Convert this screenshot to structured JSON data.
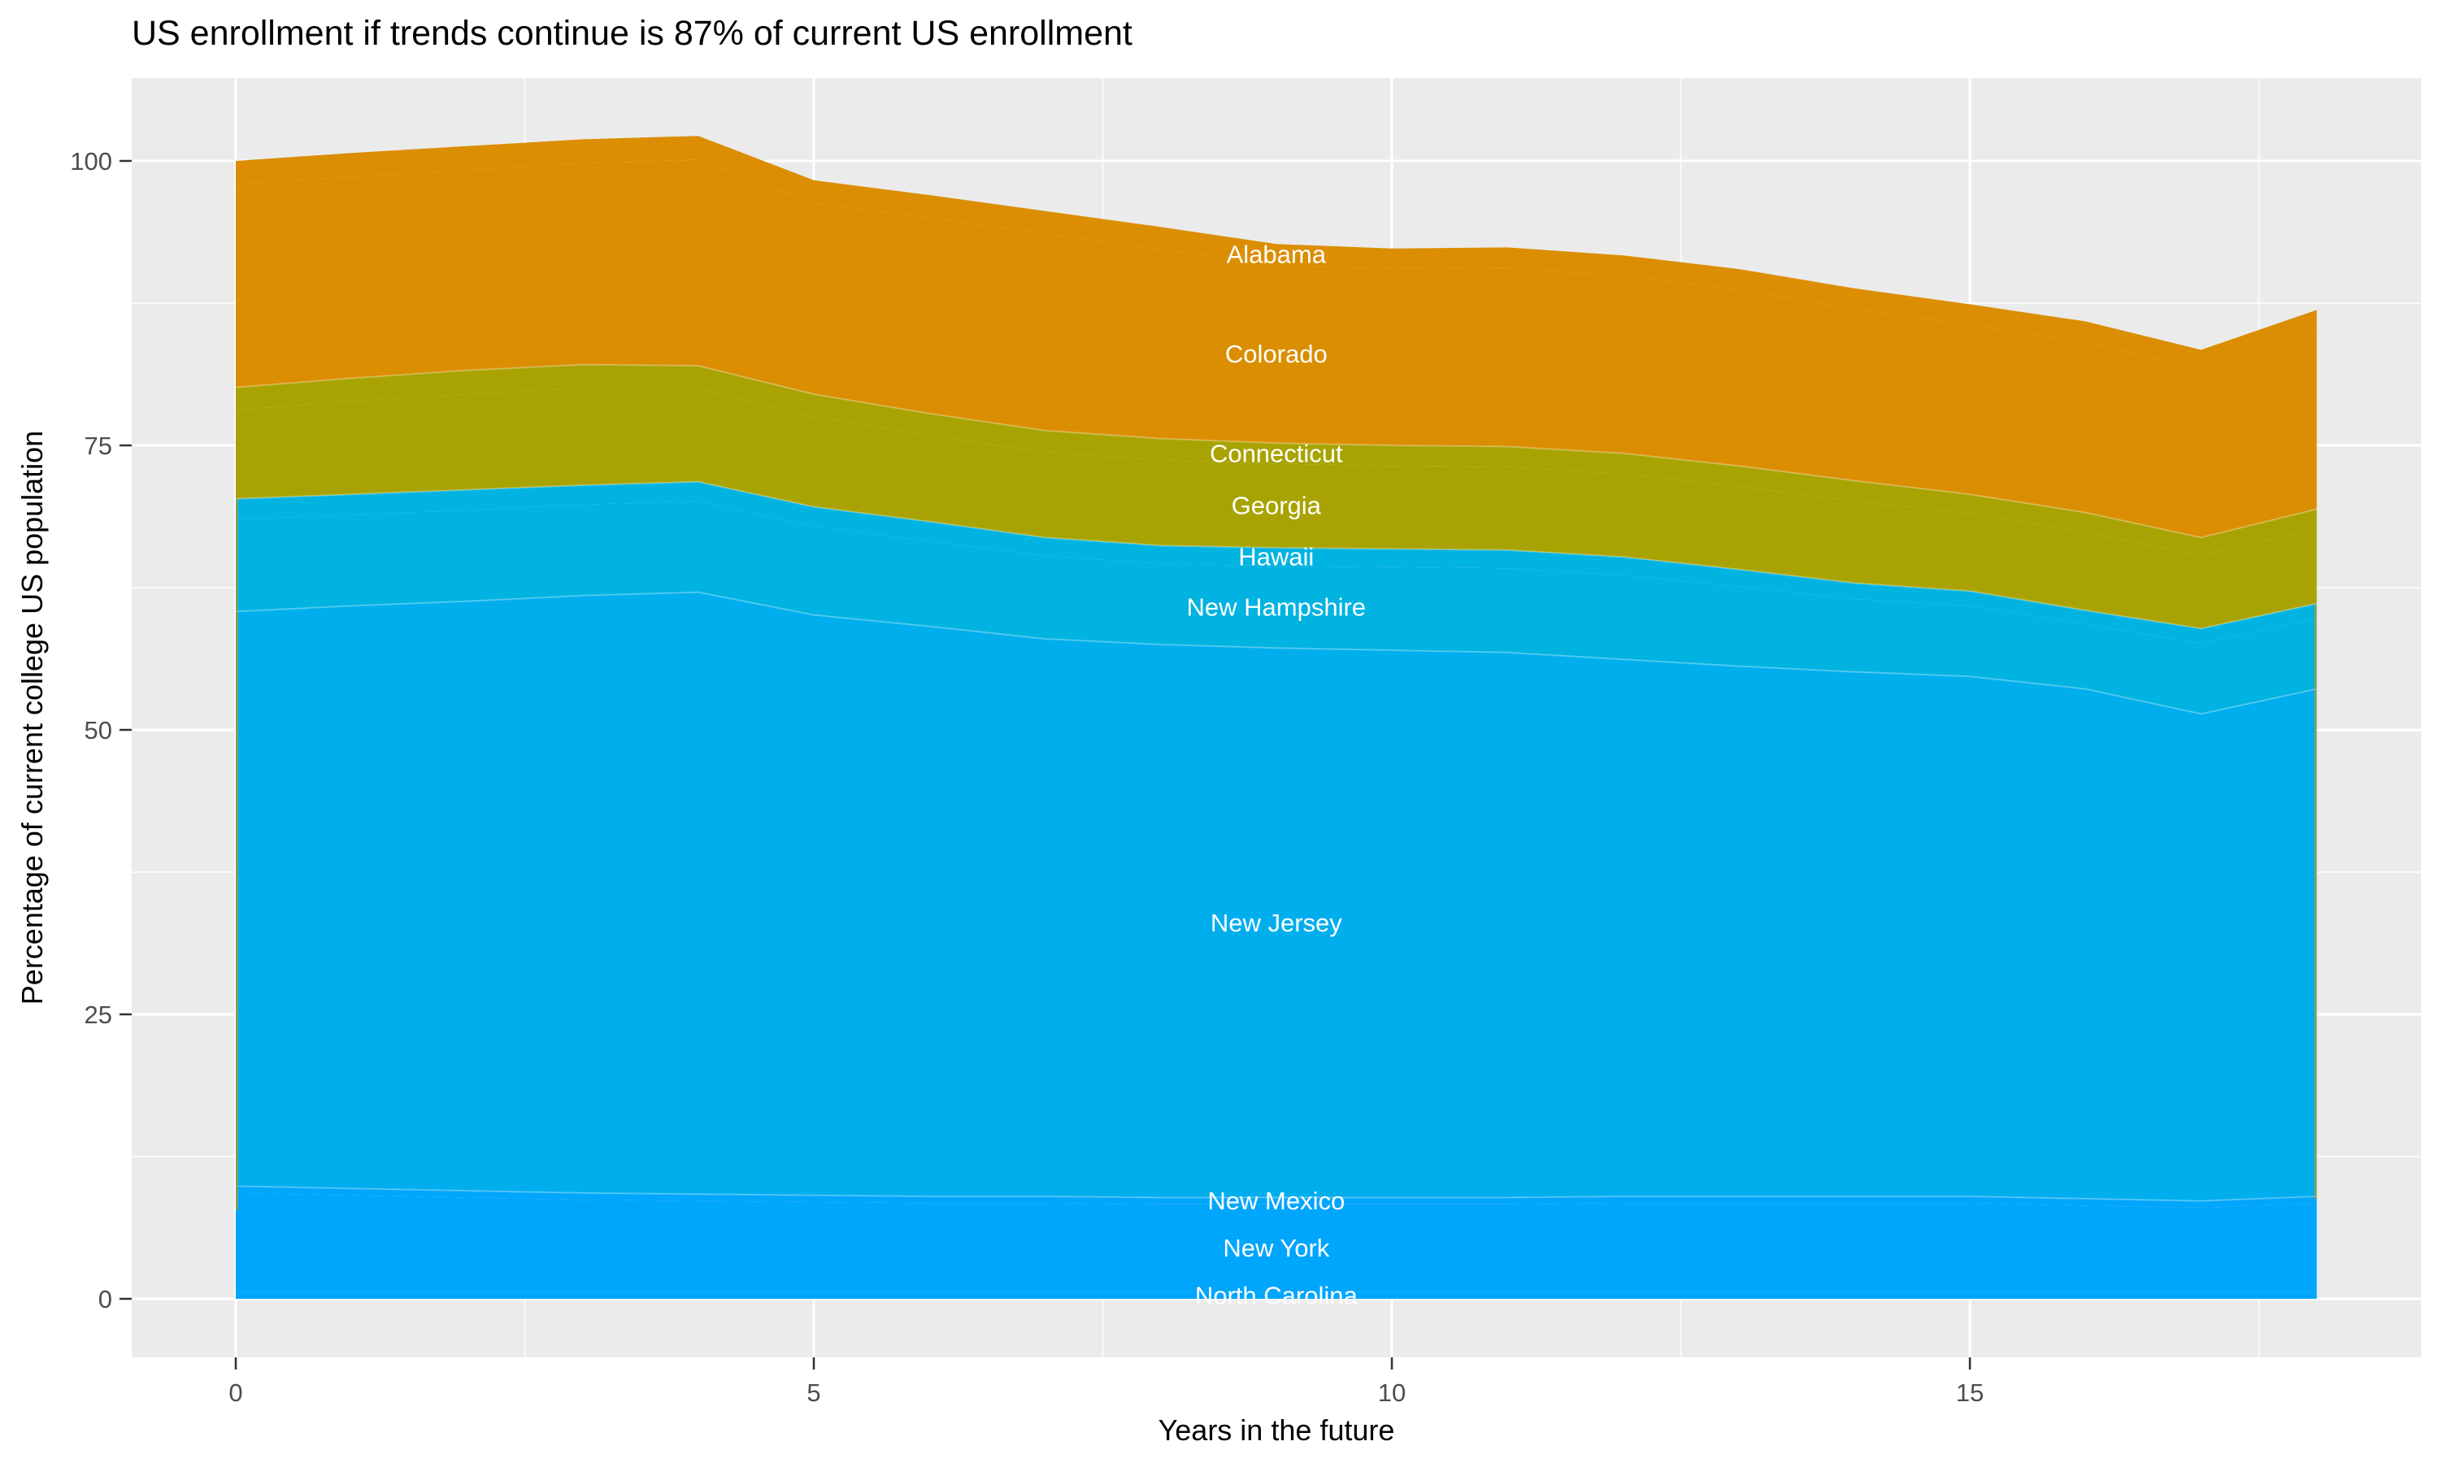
{
  "title": "US enrollment if trends continue is 87% of current US enrollment",
  "axes": {
    "x": {
      "label": "Years in the future",
      "tick_labels": [
        "0",
        "5",
        "10",
        "15"
      ],
      "tick_values": [
        0,
        5,
        10,
        15
      ]
    },
    "y": {
      "label": "Percentage of current college US population",
      "tick_labels": [
        "0",
        "25",
        "50",
        "75",
        "100"
      ],
      "tick_values": [
        0,
        25,
        50,
        75,
        100
      ]
    }
  },
  "style": {
    "panel_bg": "#EBEBEB",
    "grid_color": "#FFFFFF",
    "tick_color": "#333333",
    "tick_text_color": "#4D4D4D",
    "title_color": "#000000",
    "axis_title_color": "#000000",
    "band_label_color": "#FFFFFF",
    "seam_color": "rgba(255,255,255,0.28)",
    "edge_sliver_color": "rgba(184,154,32,0.65)"
  },
  "chart_data": {
    "type": "area",
    "stacked": true,
    "title": "US enrollment if trends continue is 87% of current US enrollment",
    "xlabel": "Years in the future",
    "ylabel": "Percentage of current college US population",
    "xlim": [
      -0.9,
      18.9
    ],
    "ylim": [
      -5.1,
      107.3
    ],
    "grid": "on",
    "legend_position": "none",
    "label_annotation_x": 9,
    "x": [
      0,
      1,
      2,
      3,
      4,
      5,
      6,
      7,
      8,
      9,
      10,
      11,
      12,
      13,
      14,
      15,
      16,
      17,
      18
    ],
    "series_order_note": "bottom to top stacking order",
    "series": [
      {
        "name": "North Carolina",
        "color": "#00A5FC",
        "values": [
          0.6,
          0.6,
          0.6,
          0.6,
          0.6,
          0.6,
          0.6,
          0.6,
          0.6,
          0.6,
          0.6,
          0.6,
          0.6,
          0.6,
          0.6,
          0.6,
          0.6,
          0.6,
          0.6
        ]
      },
      {
        "name": "New York",
        "color": "#00A5FC",
        "values": [
          8.7,
          8.5,
          8.3,
          8.1,
          8.0,
          7.9,
          7.8,
          7.8,
          7.7,
          7.7,
          7.7,
          7.7,
          7.8,
          7.8,
          7.8,
          7.8,
          7.6,
          7.4,
          7.8
        ]
      },
      {
        "name": "New Mexico",
        "color": "#00A5FC",
        "values": [
          0.6,
          0.6,
          0.6,
          0.6,
          0.6,
          0.6,
          0.6,
          0.6,
          0.6,
          0.6,
          0.6,
          0.6,
          0.6,
          0.6,
          0.6,
          0.6,
          0.6,
          0.6,
          0.6
        ]
      },
      {
        "name": "New Jersey",
        "color": "#00AEEE",
        "values": [
          50.5,
          51.2,
          51.8,
          52.5,
          52.9,
          51.0,
          50.1,
          49.0,
          48.6,
          48.3,
          48.1,
          47.9,
          47.2,
          46.6,
          46.1,
          45.7,
          44.8,
          42.8,
          44.6
        ]
      },
      {
        "name": "New Hampshire",
        "color": "#00B3E1",
        "values": [
          8.1,
          8.0,
          8.0,
          8.0,
          8.0,
          7.8,
          7.5,
          7.3,
          7.1,
          7.2,
          7.3,
          7.4,
          7.4,
          7.0,
          6.4,
          6.2,
          5.7,
          6.2,
          6.2
        ]
      },
      {
        "name": "Hawaii",
        "color": "#00B3E1",
        "values": [
          1.8,
          1.8,
          1.8,
          1.7,
          1.7,
          1.7,
          1.7,
          1.6,
          1.6,
          1.6,
          1.6,
          1.6,
          1.6,
          1.5,
          1.4,
          1.3,
          1.2,
          1.3,
          1.3
        ]
      },
      {
        "name": "Georgia",
        "color": "#A8A302",
        "values": [
          7.8,
          8.2,
          8.4,
          8.5,
          8.2,
          7.9,
          7.6,
          7.5,
          7.5,
          7.4,
          7.3,
          7.3,
          7.3,
          7.3,
          7.2,
          6.8,
          6.9,
          6.4,
          6.6
        ]
      },
      {
        "name": "Connecticut",
        "color": "#A8A302",
        "values": [
          2.0,
          2.0,
          2.1,
          2.1,
          2.0,
          2.0,
          1.9,
          1.9,
          1.9,
          1.8,
          1.8,
          1.8,
          1.8,
          1.8,
          1.8,
          1.7,
          1.7,
          1.6,
          1.7
        ]
      },
      {
        "name": "Colorado",
        "color": "#DB8E02",
        "values": [
          17.8,
          17.7,
          17.6,
          17.7,
          18.1,
          16.8,
          17.2,
          17.3,
          16.6,
          15.7,
          15.5,
          15.7,
          15.6,
          15.5,
          15.1,
          14.9,
          15.0,
          14.8,
          15.7
        ]
      },
      {
        "name": "Alabama",
        "color": "#DB8E02",
        "values": [
          2.1,
          2.1,
          2.1,
          2.1,
          2.1,
          2.0,
          2.0,
          2.0,
          2.0,
          1.8,
          1.8,
          1.8,
          1.8,
          1.8,
          1.8,
          1.8,
          1.8,
          1.7,
          1.8
        ]
      }
    ],
    "stacked_totals": [
      100.0,
      100.7,
      101.3,
      101.9,
      102.2,
      98.3,
      97.0,
      95.6,
      94.2,
      92.7,
      92.3,
      92.4,
      91.7,
      90.5,
      88.8,
      87.4,
      85.9,
      83.4,
      86.9
    ]
  }
}
